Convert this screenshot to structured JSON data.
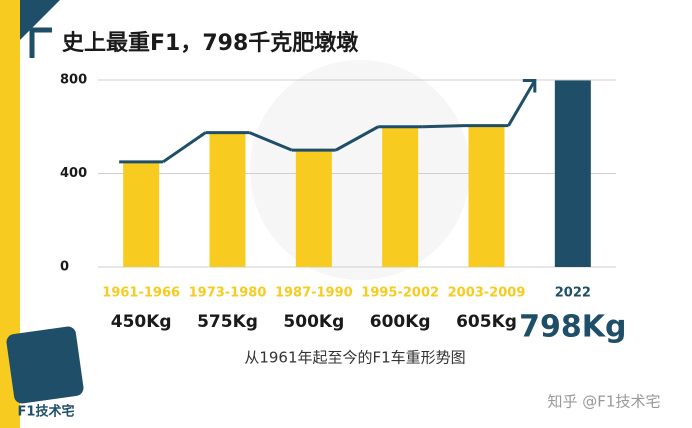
{
  "chart_data": {
    "type": "bar",
    "title": "史上最重F1，798千克肥墩墩",
    "subtitle": "从1961年起至今的F1车重形势图",
    "categories": [
      "1961-1966",
      "1973-1980",
      "1987-1990",
      "1995-2002",
      "2003-2009",
      "2022"
    ],
    "values": [
      450,
      575,
      500,
      600,
      605,
      798
    ],
    "value_labels": [
      "450Kg",
      "575Kg",
      "500Kg",
      "600Kg",
      "605Kg",
      "798Kg"
    ],
    "colors": [
      "#f7cb1f",
      "#f7cb1f",
      "#f7cb1f",
      "#f7cb1f",
      "#f7cb1f",
      "#1e4e68"
    ],
    "ylim": [
      0,
      800
    ],
    "yticks": [
      0,
      400,
      800
    ],
    "grid": true
  },
  "logo": "F1技术宅",
  "watermark": "知乎 @F1技术宅"
}
